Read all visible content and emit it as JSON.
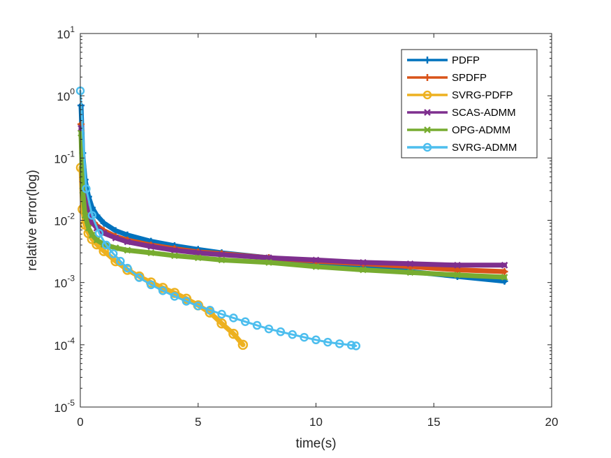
{
  "chart_data": {
    "type": "line",
    "title": "",
    "xlabel": "time(s)",
    "ylabel": "relative error(log)",
    "xlim": [
      0,
      20
    ],
    "ylim_log10": [
      -5,
      1
    ],
    "yscale": "log",
    "legend_position": "top-right",
    "x_ticks": [
      {
        "value": 0,
        "label": "0"
      },
      {
        "value": 5,
        "label": "5"
      },
      {
        "value": 10,
        "label": "10"
      },
      {
        "value": 15,
        "label": "15"
      },
      {
        "value": 20,
        "label": "20"
      }
    ],
    "y_ticks": [
      {
        "exp": 1,
        "base": "10",
        "sup": "1"
      },
      {
        "exp": 0,
        "base": "10",
        "sup": "0"
      },
      {
        "exp": -1,
        "base": "10",
        "sup": "-1"
      },
      {
        "exp": -2,
        "base": "10",
        "sup": "-2"
      },
      {
        "exp": -3,
        "base": "10",
        "sup": "-3"
      },
      {
        "exp": -4,
        "base": "10",
        "sup": "-4"
      },
      {
        "exp": -5,
        "base": "10",
        "sup": "-5"
      }
    ],
    "series": [
      {
        "name": "PDFP",
        "color": "#0072BD",
        "marker": "plus",
        "x": [
          0.03,
          0.1,
          0.2,
          0.35,
          0.5,
          0.7,
          1,
          1.5,
          2,
          3,
          4,
          5,
          6,
          8,
          10,
          12,
          14,
          16,
          18
        ],
        "y": [
          0.7,
          0.12,
          0.045,
          0.024,
          0.016,
          0.012,
          0.009,
          0.0068,
          0.0058,
          0.0046,
          0.0039,
          0.0034,
          0.003,
          0.0025,
          0.0021,
          0.0018,
          0.0015,
          0.00125,
          0.00105
        ]
      },
      {
        "name": "SPDFP",
        "color": "#D95319",
        "marker": "plus",
        "x": [
          0.03,
          0.1,
          0.2,
          0.35,
          0.5,
          0.7,
          1,
          1.5,
          2,
          3,
          4,
          5,
          6,
          8,
          10,
          12,
          14,
          16,
          18
        ],
        "y": [
          0.35,
          0.045,
          0.02,
          0.013,
          0.01,
          0.0082,
          0.0068,
          0.0055,
          0.0048,
          0.004,
          0.0035,
          0.0031,
          0.0029,
          0.0025,
          0.0022,
          0.002,
          0.0018,
          0.0016,
          0.0015
        ]
      },
      {
        "name": "SVRG-PDFP",
        "color": "#EDB120",
        "marker": "circle",
        "x": [
          0.03,
          0.1,
          0.2,
          0.35,
          0.5,
          0.7,
          1,
          1.5,
          2,
          2.5,
          3,
          3.5,
          4,
          4.5,
          5,
          5.5,
          6,
          6.5,
          6.9
        ],
        "y": [
          0.07,
          0.015,
          0.0085,
          0.0062,
          0.005,
          0.0041,
          0.0032,
          0.0022,
          0.0016,
          0.00125,
          0.001,
          0.00082,
          0.00068,
          0.00055,
          0.00043,
          0.00033,
          0.00022,
          0.00015,
          0.0001
        ]
      },
      {
        "name": "SCAS-ADMM",
        "color": "#7E2F8E",
        "marker": "x",
        "x": [
          0.03,
          0.1,
          0.2,
          0.35,
          0.5,
          0.7,
          1,
          1.5,
          2,
          3,
          4,
          5,
          6,
          8,
          10,
          12,
          14,
          16,
          18
        ],
        "y": [
          0.3,
          0.045,
          0.02,
          0.012,
          0.0092,
          0.0075,
          0.0062,
          0.0052,
          0.0045,
          0.0038,
          0.0033,
          0.003,
          0.0028,
          0.0025,
          0.0023,
          0.0021,
          0.002,
          0.0019,
          0.0019
        ]
      },
      {
        "name": "OPG-ADMM",
        "color": "#77AC30",
        "marker": "x",
        "x": [
          0.03,
          0.1,
          0.2,
          0.35,
          0.5,
          0.7,
          1,
          1.5,
          2,
          3,
          4,
          5,
          6,
          8,
          10,
          12,
          14,
          16,
          18
        ],
        "y": [
          0.25,
          0.03,
          0.012,
          0.0075,
          0.0058,
          0.0048,
          0.0041,
          0.0036,
          0.0033,
          0.003,
          0.0027,
          0.0025,
          0.0023,
          0.0021,
          0.0018,
          0.0016,
          0.00145,
          0.00132,
          0.00122
        ]
      },
      {
        "name": "SVRG-ADMM",
        "color": "#4DBEEE",
        "marker": "circle",
        "x": [
          0,
          0.25,
          0.5,
          0.8,
          1.1,
          1.4,
          1.7,
          2,
          2.5,
          3,
          3.5,
          4,
          4.5,
          5,
          5.5,
          6,
          6.5,
          7,
          7.5,
          8,
          8.5,
          9,
          9.5,
          10,
          10.5,
          11,
          11.5,
          11.7
        ],
        "y": [
          1.2,
          0.032,
          0.012,
          0.0062,
          0.004,
          0.0029,
          0.0022,
          0.0017,
          0.0012,
          0.00092,
          0.00074,
          0.0006,
          0.0005,
          0.00042,
          0.00036,
          0.00031,
          0.00027,
          0.000235,
          0.000205,
          0.00018,
          0.000162,
          0.000146,
          0.000132,
          0.00012,
          0.00011,
          0.000104,
          9.85e-05,
          9.6e-05
        ]
      }
    ]
  }
}
